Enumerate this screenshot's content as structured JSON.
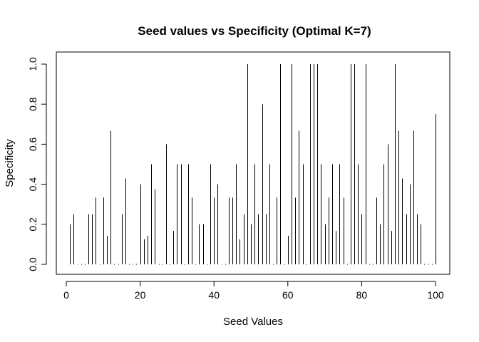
{
  "chart_data": {
    "type": "bar",
    "style": "vertical-lines",
    "title": "Seed values vs Specificity (Optimal K=7)",
    "xlabel": "Seed Values",
    "ylabel": "Specificity",
    "xlim": [
      1,
      100
    ],
    "ylim": [
      0,
      1
    ],
    "xticks": [
      0,
      20,
      40,
      60,
      80,
      100
    ],
    "yticks": [
      0.0,
      0.2,
      0.4,
      0.6,
      0.8,
      1.0
    ],
    "xtick_labels": [
      "0",
      "20",
      "40",
      "60",
      "80",
      "100"
    ],
    "ytick_labels": [
      "0.0",
      "0.2",
      "0.4",
      "0.6",
      "0.8",
      "1.0"
    ],
    "x": [
      1,
      2,
      3,
      4,
      5,
      6,
      7,
      8,
      9,
      10,
      11,
      12,
      13,
      14,
      15,
      16,
      17,
      18,
      19,
      20,
      21,
      22,
      23,
      24,
      25,
      26,
      27,
      28,
      29,
      30,
      31,
      32,
      33,
      34,
      35,
      36,
      37,
      38,
      39,
      40,
      41,
      42,
      43,
      44,
      45,
      46,
      47,
      48,
      49,
      50,
      51,
      52,
      53,
      54,
      55,
      56,
      57,
      58,
      59,
      60,
      61,
      62,
      63,
      64,
      65,
      66,
      67,
      68,
      69,
      70,
      71,
      72,
      73,
      74,
      75,
      76,
      77,
      78,
      79,
      80,
      81,
      82,
      83,
      84,
      85,
      86,
      87,
      88,
      89,
      90,
      91,
      92,
      93,
      94,
      95,
      96,
      97,
      98,
      99,
      100
    ],
    "values": [
      0.2,
      0.25,
      0,
      0,
      0,
      0.25,
      0.25,
      0.333,
      0,
      0.333,
      0.143,
      0.667,
      0,
      0,
      0.25,
      0.429,
      0,
      0,
      0,
      0.4,
      0.125,
      0.143,
      0.5,
      0.375,
      0,
      0,
      0.6,
      0,
      0.167,
      0.5,
      0.5,
      0,
      0.5,
      0.333,
      0,
      0.2,
      0.2,
      0,
      0.5,
      0.333,
      0.4,
      0,
      0,
      0.333,
      0.333,
      0.5,
      0.125,
      0.25,
      1.0,
      0.2,
      0.5,
      0.25,
      0.8,
      0.25,
      0.5,
      0,
      0.333,
      1.0,
      0,
      0.143,
      1.0,
      0.333,
      0.667,
      0.5,
      0,
      1.0,
      1.0,
      1.0,
      0.5,
      0.2,
      0.333,
      0.5,
      0.167,
      0.5,
      0.333,
      0,
      1.0,
      1.0,
      0.5,
      0.25,
      1.0,
      0,
      0,
      0.333,
      0.2,
      0.5,
      0.6,
      0.167,
      1.0,
      0.667,
      0.429,
      0.25,
      0.4,
      0.667,
      0.25,
      0.2,
      0,
      0,
      0,
      0.75
    ]
  }
}
